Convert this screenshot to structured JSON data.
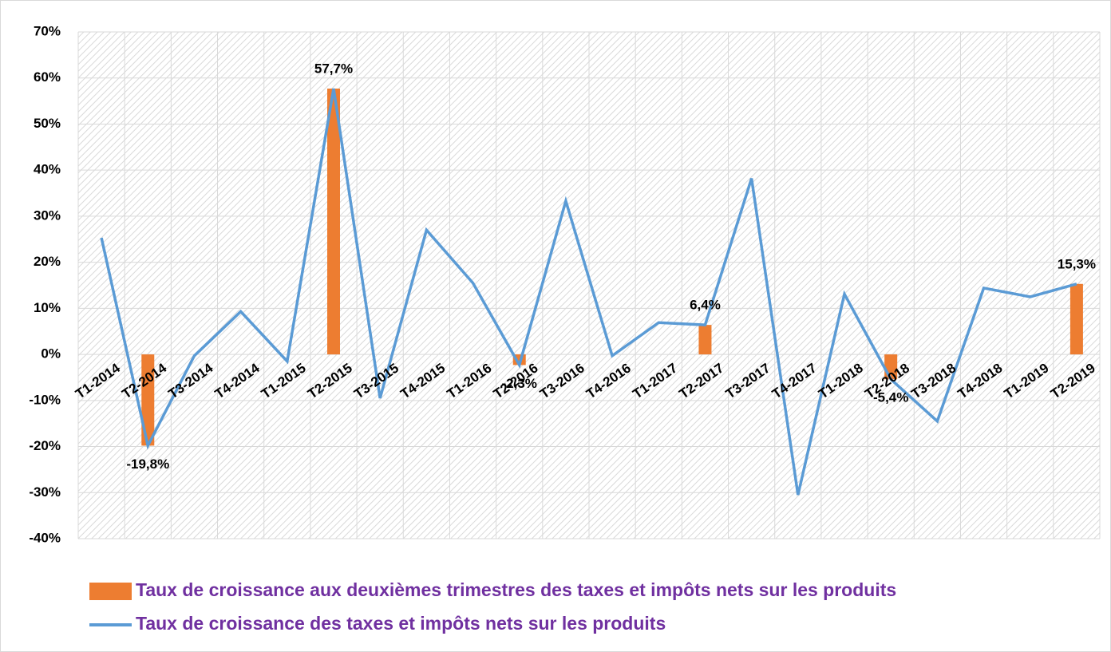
{
  "chart_data": {
    "type": "combo",
    "categories": [
      "T1-2014",
      "T2-2014",
      "T3-2014",
      "T4-2014",
      "T1-2015",
      "T2-2015",
      "T3-2015",
      "T4-2015",
      "T1-2016",
      "T2-2016",
      "T3-2016",
      "T4-2016",
      "T1-2017",
      "T2-2017",
      "T3-2017",
      "T4-2017",
      "T1-2018",
      "T2-2018",
      "T3-2018",
      "T4-2018",
      "T1-2019",
      "T2-2019"
    ],
    "series": [
      {
        "name": "Taux de croissance aux deuxièmes trimestres des taxes et impôts nets sur les produits",
        "type": "bar",
        "color": "#ed7d31",
        "values": [
          null,
          -19.8,
          null,
          null,
          null,
          57.7,
          null,
          null,
          null,
          -2.3,
          null,
          null,
          null,
          6.4,
          null,
          null,
          null,
          -5.4,
          null,
          null,
          null,
          15.3
        ],
        "value_labels": [
          null,
          "-19,8%",
          null,
          null,
          null,
          "57,7%",
          null,
          null,
          null,
          "-2,3%",
          null,
          null,
          null,
          "6,4%",
          null,
          null,
          null,
          "-5,4%",
          null,
          null,
          null,
          "15,3%"
        ]
      },
      {
        "name": "Taux de croissance des taxes et impôts nets sur les produits",
        "type": "line",
        "color": "#5b9bd5",
        "values": [
          25.3,
          -19.8,
          -0.3,
          9.3,
          -1.5,
          57.7,
          -9.5,
          27,
          15.5,
          -2.3,
          33.3,
          -0.3,
          6.9,
          6.4,
          38.2,
          -30.5,
          13.1,
          -5.4,
          -14.5,
          14.4,
          12.5,
          15.3
        ]
      }
    ],
    "ylim": [
      -40,
      70
    ],
    "yticks": [
      {
        "value": -40,
        "label": "-40%"
      },
      {
        "value": -30,
        "label": "-30%"
      },
      {
        "value": -20,
        "label": "-20%"
      },
      {
        "value": -10,
        "label": "-10%"
      },
      {
        "value": 0,
        "label": "0%"
      },
      {
        "value": 10,
        "label": "10%"
      },
      {
        "value": 20,
        "label": "20%"
      },
      {
        "value": 30,
        "label": "30%"
      },
      {
        "value": 40,
        "label": "40%"
      },
      {
        "value": 50,
        "label": "50%"
      },
      {
        "value": 60,
        "label": "60%"
      },
      {
        "value": 70,
        "label": "70%"
      }
    ],
    "grid": true,
    "legend": "bottom",
    "legend_color": "#7030a0"
  }
}
